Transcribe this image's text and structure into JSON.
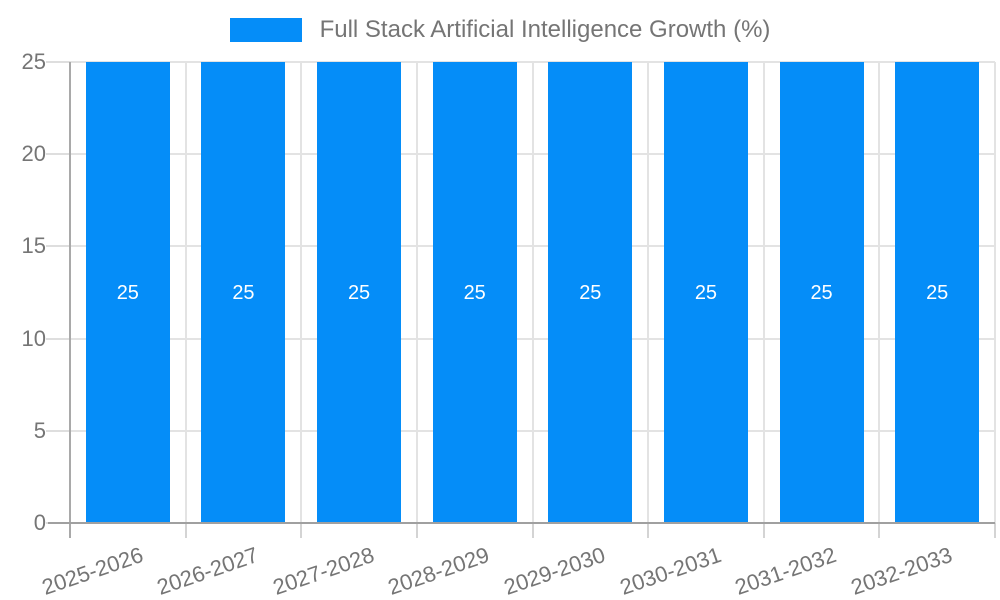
{
  "legend": {
    "label": "Full Stack Artificial Intelligence Growth (%)"
  },
  "chart_data": {
    "type": "bar",
    "title": "",
    "categories": [
      "2025-2026",
      "2026-2027",
      "2027-2028",
      "2028-2029",
      "2029-2030",
      "2030-2031",
      "2031-2032",
      "2032-2033"
    ],
    "series": [
      {
        "name": "Full Stack Artificial Intelligence Growth (%)",
        "values": [
          25,
          25,
          25,
          25,
          25,
          25,
          25,
          25
        ]
      }
    ],
    "bar_value_labels": [
      "25",
      "25",
      "25",
      "25",
      "25",
      "25",
      "25",
      "25"
    ],
    "xlabel": "",
    "ylabel": "",
    "ylim": [
      0,
      25
    ],
    "yticks": [
      0,
      5,
      10,
      15,
      20,
      25
    ],
    "grid": true,
    "legend_position": "top",
    "colors": {
      "bar": "#058DF8",
      "axis_label": "#757575",
      "gridline": "#e3e3e3",
      "axis_line": "#a9a9a9",
      "bar_label": "#ffffff"
    }
  }
}
